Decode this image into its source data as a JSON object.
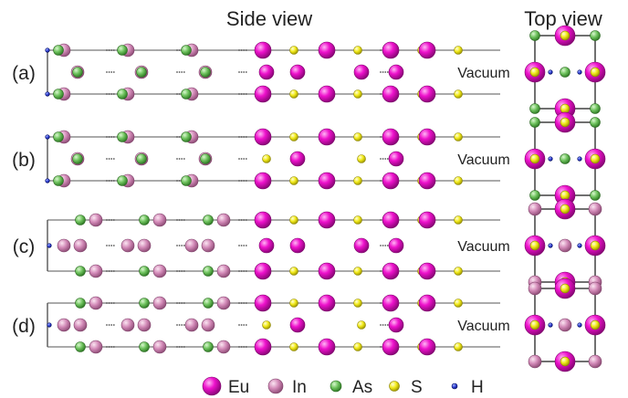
{
  "headers": {
    "side_view": "Side view",
    "top_view": "Top view"
  },
  "panels": [
    {
      "label": "(a)",
      "vacuum": "Vacuum"
    },
    {
      "label": "(b)",
      "vacuum": "Vacuum"
    },
    {
      "label": "(c)",
      "vacuum": "Vacuum"
    },
    {
      "label": "(d)",
      "vacuum": "Vacuum"
    }
  ],
  "legend": [
    {
      "element": "Eu",
      "color": "#ee11cc"
    },
    {
      "element": "In",
      "color": "#d38ab8"
    },
    {
      "element": "As",
      "color": "#6fc35e"
    },
    {
      "element": "S",
      "color": "#f2ea1a"
    },
    {
      "element": "H",
      "color": "#2b3bd0"
    }
  ]
}
